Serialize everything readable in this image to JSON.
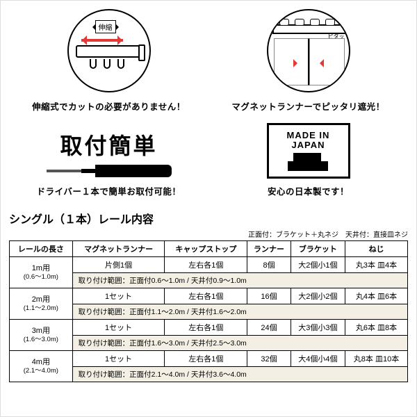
{
  "features": {
    "extend": {
      "label": "伸縮",
      "caption": "伸縮式でカットの必要がありません！"
    },
    "magnet": {
      "caption": "マグネットランナーでピッタリ遮光！",
      "pita": "ピタッ"
    }
  },
  "install": {
    "title": "取付簡単",
    "caption": "ドライバー１本で簡単お取付可能！"
  },
  "mij": {
    "line1": "MADE IN",
    "line2": "JAPAN",
    "caption": "安心の日本製です！"
  },
  "table": {
    "title": "シングル（１本）レール内容",
    "note": "正面付：ブラケット＋丸ネジ　天井付：直接皿ネジ",
    "headers": [
      "レールの長さ",
      "マグネットランナー",
      "キャップストップ",
      "ランナー",
      "ブラケット",
      "ねじ"
    ],
    "rows": [
      {
        "len": "1m用",
        "range": "(0.6～1.0m)",
        "magrun": "片側1個",
        "capstop": "左右各1個",
        "runner": "8個",
        "bracket": "大2個小1個",
        "screw": "丸3本 皿4本",
        "mount": "取り付け範囲：正面付0.6～1.0m / 天井付0.9～1.0m"
      },
      {
        "len": "2m用",
        "range": "(1.1～2.0m)",
        "magrun": "1セット",
        "capstop": "左右各1個",
        "runner": "16個",
        "bracket": "大2個小2個",
        "screw": "丸4本 皿6本",
        "mount": "取り付け範囲：正面付1.1～2.0m / 天井付1.6～2.0m"
      },
      {
        "len": "3m用",
        "range": "(1.6～3.0m)",
        "magrun": "1セット",
        "capstop": "左右各1個",
        "runner": "24個",
        "bracket": "大3個小3個",
        "screw": "丸6本 皿8本",
        "mount": "取り付け範囲：正面付1.6～3.0m / 天井付2.5～3.0m"
      },
      {
        "len": "4m用",
        "range": "(2.1～4.0m)",
        "magrun": "1セット",
        "capstop": "左右各1個",
        "runner": "32個",
        "bracket": "大4個小4個",
        "screw": "丸8本 皿10本",
        "mount": "取り付け範囲：正面付2.1～4.0m / 天井付3.6～4.0m"
      }
    ]
  }
}
